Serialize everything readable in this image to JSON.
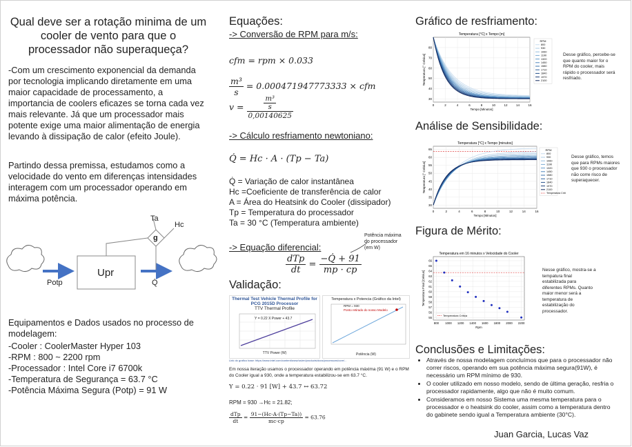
{
  "left": {
    "title": "Qual deve ser a rotação minima de um cooler de vento para que o processador não superaqueça?",
    "intro": "-Com um crescimento exponencial da demanda por tecnologia implicando diretamente em uma maior capacidade de processamento, a importancia de coolers eficazes se torna cada vez mais relevante. Já que um processador mais potente exige uma maior alimentação de energia levando à dissipação de calor (efeito Joule).",
    "premise": "Partindo dessa premissa, estudamos como a velocidade do vento em diferenças intensidades interagem com um processador operando em máxima potência.",
    "diagram": {
      "ta": "Ta",
      "hc": "Hc",
      "g": "g",
      "upr": "Upr",
      "potp": "Potp",
      "qdot": "Q̇"
    },
    "equipment_title": "Equipamentos e Dados usados no processo de modelagem:",
    "equipment": [
      "-Cooler : CoolerMaster Hyper 103",
      "-RPM : 800 ~ 2200 rpm",
      "-Processador : Intel Core i7 6700k",
      "-Temperatura de Segurança = 63.7 °C",
      "-Potência Máxima Segura (Potp) = 91 W"
    ]
  },
  "middle": {
    "eq_title": "Equações:",
    "conv_title": "-> Conversão de RPM para m/s:",
    "eq1": "cfm = rpm × 0.033",
    "eq2_lhs_n": "m³",
    "eq2_lhs_d": "s",
    "eq2_rhs": "= 0.000471947773333 × cfm",
    "eq3_lhs": "v =",
    "eq3_n": "m³",
    "eq3_n2": "s",
    "eq3_d": "0,00140625",
    "newton_title": "-> Cálculo resfriamento newtoniano:",
    "eq4": "Q̇ = Hc · A · (Tp − Ta)",
    "defs": [
      "Q̇ = Variação de calor instantânea",
      "Hc =Coeficiente de transferência de calor",
      "A = Área do Heatsink do Cooler (dissipador)",
      "Tp = Temperatura do processador",
      "Ta = 30 °C (Temperatura ambiente)"
    ],
    "diff_title": "-> Equação diferencial:",
    "diff_note": "Potência máxima do processador (em W)",
    "diff_lhs_n": "dTp",
    "diff_lhs_d": "dt",
    "diff_rhs_n": "−Q̇ + 91",
    "diff_rhs_d": "mp · cp",
    "val_title": "Validação:",
    "val_chart1_title": "Thermal Test Vehicle Thermal Profile for PCG 2015D Processor",
    "val_chart1_sub": "TTV Thermal Profile",
    "val_chart1_eq": "Y = 0.22 X Power + 43.7",
    "val_chart1_xlabel": "TTV Power (W)",
    "val_chart2_title": "Temperatura x Potencia (Gráfico da Intel)",
    "val_chart2_legend1": "RPM = 930",
    "val_chart2_legend2": "Ponto retirado do nosso Modelo",
    "val_chart2_xlabel": "Potência (W)",
    "val_source": "Link do grafico base: https://www.intel.com/content/www/us/en/products/docs/processors/core/...",
    "val_text": "Em nossa iteração usamos o processador operando em potência máxima (91 W) e o RPM do Cooler igual a 930, onde a temperatura estabilizou-se em 63.7 °C.",
    "val_eq1": "Y = 0.22 · 91 [W] + 43.7 ↔ 63.72",
    "val_eq2": "RPM = 930 →Hc = 21.82;",
    "val_eq3_n": "dTp",
    "val_eq3_d": "dt",
    "val_eq3_rn": "91−(Hc·A·(Tp−Ta))",
    "val_eq3_rd": "mc·cp",
    "val_eq3_res": "= 63.76"
  },
  "right": {
    "g1_title": "Gráfico de resfriamento:",
    "g1_desc": "Desse gráfico, percebe-se que quanto maior for o RPM do cooler, mais rápido o processador será resfriado.",
    "g2_title": "Análise de Sensibilidade:",
    "g2_desc": "Desse gráfico, temos que para RPMs maiores que 930 o processador não corre risco de superaquecer.",
    "g3_title": "Figura de Mérito:",
    "g3_desc": "Nesse gráfico, mostra-se a tempatura final estabilizada para diferentes RPMs. Quanto maior menor será a temperatura de estabilização do processador.",
    "conc_title": "Conclusões e Limitações:",
    "conclusions": [
      "Através de nossa modelagem concluímos que para o processador não correr riscos, operando em sua potência máxima segura(91W), é necessário um RPM mínimo de 930.",
      "O cooler utilizado em nosso modelo, sendo de última geração, resfria o processador rapidamente, algo que não é muito comum.",
      "Consideramos em nosso Sistema uma mesma temperatura para o processador e o heatsink do cooler, assim como a temperatura dentro do gabinete sendo igual a Temperatura ambiente (30°C)."
    ],
    "authors": "Juan Garcia, Lucas Vaz"
  },
  "chart_data": [
    {
      "type": "line",
      "title": "Temperatura [°C] x Tempo [m]",
      "xlabel": "Tempo [Minutos]",
      "ylabel": "Temperatura [° Celsius]",
      "x_ticks": [
        0,
        2,
        4,
        6,
        8,
        10,
        12,
        14,
        16
      ],
      "y_ticks": [
        30,
        40,
        50,
        60,
        70,
        80
      ],
      "xlim": [
        0,
        16
      ],
      "ylim": [
        27,
        90
      ],
      "legend_title": "RPM",
      "series_names": [
        "800",
        "930",
        "1060",
        "1190",
        "1320",
        "1450",
        "1580",
        "1710",
        "1840",
        "1970",
        "2100"
      ],
      "start_value": 90,
      "end_values": [
        33,
        32.5,
        32,
        31.5,
        31.2,
        31,
        30.8,
        30.6,
        30.4,
        30.3,
        30.2
      ],
      "rates": [
        0.32,
        0.34,
        0.36,
        0.38,
        0.4,
        0.42,
        0.44,
        0.46,
        0.48,
        0.5,
        0.52
      ]
    },
    {
      "type": "line",
      "title": "Temperatura [°C] x Tempo [minutos]",
      "xlabel": "Tempo [Minutos]",
      "ylabel": "Temperatura [° Celsius]",
      "x_ticks": [
        0,
        2,
        4,
        6,
        8,
        10,
        12,
        14,
        16
      ],
      "y_ticks": [
        30,
        35,
        40,
        45,
        50,
        55,
        60,
        65
      ],
      "xlim": [
        0,
        16
      ],
      "ylim": [
        28,
        67
      ],
      "legend_title": "RPM",
      "series_names": [
        "800",
        "930",
        "1060",
        "1190",
        "1320",
        "1450",
        "1580",
        "1710",
        "1840",
        "1970",
        "2100"
      ],
      "start_value": 30,
      "end_values": [
        66,
        63.7,
        62.5,
        61.5,
        60.8,
        60.2,
        59.7,
        59.3,
        59.0,
        58.7,
        58.5
      ],
      "rates": [
        0.3,
        0.32,
        0.34,
        0.36,
        0.38,
        0.4,
        0.42,
        0.44,
        0.46,
        0.48,
        0.5
      ],
      "critical_label": "Temperatura Crítica",
      "critical_value": 63.7
    },
    {
      "type": "scatter",
      "title": "Temperatura em 16 minutos x Velocidade do Cooler",
      "xlabel": "Rpm",
      "ylabel": "Temperatura Final [Celsius]",
      "x": [
        800,
        930,
        1060,
        1190,
        1320,
        1450,
        1580,
        1710,
        1840,
        1970,
        2200
      ],
      "y": [
        66,
        63.7,
        62.2,
        61.0,
        59.9,
        59.0,
        58.2,
        57.4,
        56.8,
        56.1,
        55.0
      ],
      "x_ticks": [
        800,
        1000,
        1200,
        1400,
        1600,
        1800,
        2000,
        2200
      ],
      "y_ticks": [
        55,
        56,
        57,
        58,
        59,
        60,
        61,
        62,
        63,
        64,
        65,
        66
      ],
      "xlim": [
        750,
        2250
      ],
      "ylim": [
        54.5,
        66.8
      ],
      "critical_label": "Temperatura Crítica",
      "critical_value": 63.7
    }
  ]
}
